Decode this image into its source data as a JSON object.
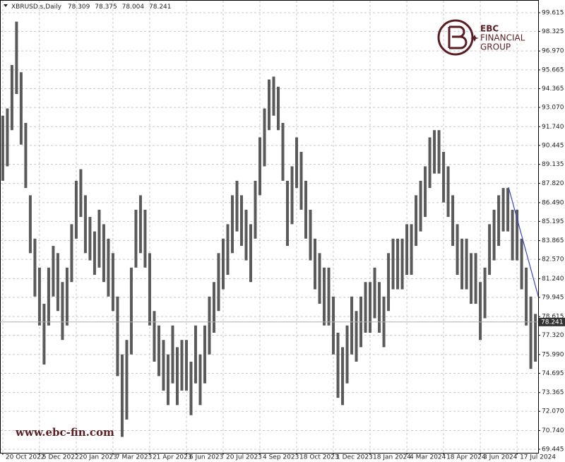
{
  "chart_data": {
    "type": "hilo",
    "title": "XBRUSD.s,Daily",
    "quote": {
      "open": 78.309,
      "high": 78.375,
      "low": 78.004,
      "close": 78.241
    },
    "watermark": {
      "url": "www.ebc-fin.com",
      "brand": [
        "EBC",
        "FINANCIAL",
        "GROUP"
      ]
    },
    "color": "#5a5a5a",
    "grid": true,
    "xlim": [
      -0.6,
      116.6
    ],
    "xticks": [
      {
        "value": 0,
        "label": "20 Oct 2022"
      },
      {
        "value": 8,
        "label": "5 Dec 2022"
      },
      {
        "value": 16,
        "label": "20 Jan 2023"
      },
      {
        "value": 24,
        "label": "7 Mar 2023"
      },
      {
        "value": 32,
        "label": "21 Apr 2023"
      },
      {
        "value": 40,
        "label": "6 Jun 2023"
      },
      {
        "value": 48,
        "label": "20 Jul 2023"
      },
      {
        "value": 56,
        "label": "4 Sep 2023"
      },
      {
        "value": 64,
        "label": "18 Oct 2023"
      },
      {
        "value": 72,
        "label": "1 Dec 2023"
      },
      {
        "value": 80,
        "label": "18 Jan 2024"
      },
      {
        "value": 88,
        "label": "4 Mar 2024"
      },
      {
        "value": 96,
        "label": "18 Apr 2024"
      },
      {
        "value": 104,
        "label": "3 Jun 2024"
      },
      {
        "value": 112,
        "label": "17 Jul 2024"
      }
    ],
    "ylim": [
      69.2,
      100.445
    ],
    "yticks": [
      99.615,
      98.325,
      {
        "value": 96.97,
        "label": "96.970"
      },
      95.665,
      94.365,
      {
        "value": 93.07,
        "label": "93.070"
      },
      {
        "value": 91.74,
        "label": "91.740"
      },
      90.445,
      89.135,
      {
        "value": 87.82,
        "label": "87.820"
      },
      {
        "value": 86.49,
        "label": "86.490"
      },
      85.195,
      83.865,
      {
        "value": 82.57,
        "label": "82.570"
      },
      {
        "value": 81.24,
        "label": "81.240"
      },
      79.945,
      78.615,
      {
        "value": 77.32,
        "label": "77.320"
      },
      {
        "value": 75.99,
        "label": "75.990"
      },
      74.695,
      73.365,
      {
        "value": 72.07,
        "label": "72.070"
      },
      {
        "value": 70.74,
        "label": "70.740"
      },
      69.445
    ],
    "high": [
      92.5,
      93,
      96,
      99,
      95.5,
      92,
      87,
      84,
      82,
      79.5,
      82,
      83.5,
      83,
      81,
      82,
      85,
      88,
      88.8,
      87,
      85.5,
      84.5,
      86,
      85,
      84,
      83,
      80,
      76,
      77,
      82,
      86,
      87,
      86,
      83,
      79,
      78,
      77,
      76,
      78,
      76.5,
      77,
      77,
      75.5,
      78,
      76,
      78,
      80,
      81,
      83,
      84,
      85,
      87,
      88,
      87,
      86,
      85,
      88,
      91,
      93,
      95,
      95.2,
      94.5,
      92,
      88,
      89,
      91,
      90,
      88,
      86,
      84,
      83,
      82,
      82,
      80,
      77.5,
      76.5,
      78,
      80,
      79,
      80,
      81,
      81,
      82,
      81,
      80,
      83,
      84,
      84,
      84,
      85,
      85,
      87,
      88,
      89,
      91,
      91.5,
      91.5,
      90,
      89,
      87,
      85,
      84,
      84,
      83,
      83,
      81,
      82,
      85,
      86,
      87,
      87.5,
      87.5,
      86,
      86,
      84,
      82,
      80,
      78.8
    ],
    "low": [
      88,
      89,
      91.5,
      94,
      90.5,
      87.5,
      83,
      80,
      78,
      75.3,
      78,
      80,
      79,
      77,
      78,
      81,
      84,
      85.5,
      83,
      82.5,
      81.5,
      82,
      81,
      80,
      79,
      74.5,
      70.3,
      71.5,
      76,
      82,
      83,
      82,
      78,
      75.5,
      74.5,
      73.5,
      72.5,
      74,
      72.5,
      73.5,
      73.5,
      71.8,
      74,
      72.5,
      74,
      76,
      77.5,
      79,
      80.5,
      81.5,
      83,
      84.5,
      83.5,
      82.5,
      81,
      84,
      87,
      89,
      91.5,
      92.5,
      91.5,
      88,
      83.5,
      85,
      87.5,
      86,
      84,
      82.5,
      80.5,
      79.5,
      78,
      78,
      76,
      73,
      72.5,
      74,
      76,
      75.5,
      76.5,
      77.5,
      77.5,
      78.5,
      77.5,
      76.5,
      79,
      80.5,
      80.5,
      80.5,
      81.5,
      81.5,
      83.5,
      84.5,
      85.5,
      87.5,
      88.5,
      88.5,
      86.5,
      85.5,
      83.5,
      81.5,
      80.5,
      80.5,
      79.5,
      79.5,
      77,
      78.5,
      81.5,
      82.5,
      83.5,
      84.5,
      84.5,
      82.5,
      82.5,
      80.5,
      78,
      75,
      75.5
    ]
  }
}
